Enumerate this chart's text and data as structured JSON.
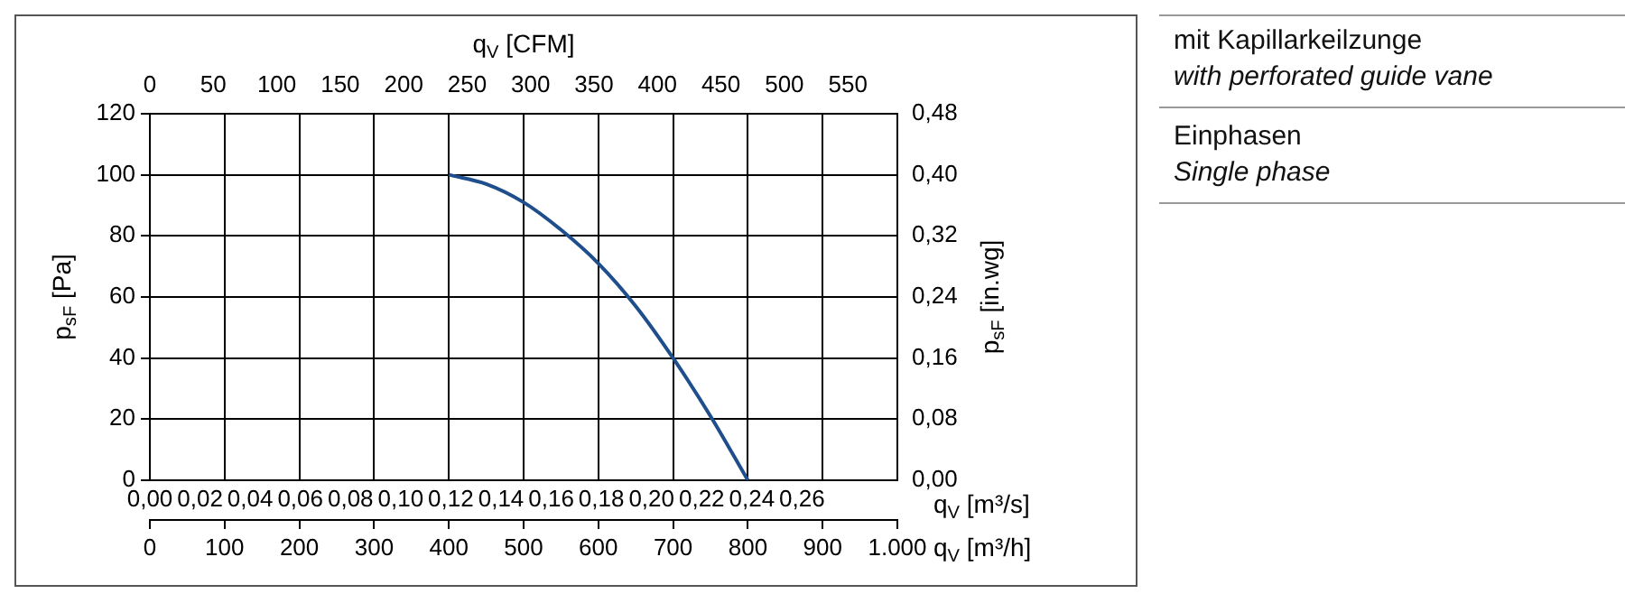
{
  "chart_data": {
    "type": "line",
    "xlabel": "q$_{V}$ [m³/h]",
    "x2label": "q$_{V}$ [CFM]",
    "ylabel": "p$_{sF}$ [Pa]",
    "y2label": "p$_{sF}$ [in.wg]",
    "x": [
      400,
      450,
      500,
      550,
      600,
      650,
      700,
      750,
      800
    ],
    "series": [
      {
        "color": "#1f4e8c",
        "values": [
          100,
          97,
          91,
          82,
          71,
          57,
          40,
          21,
          0
        ]
      }
    ],
    "xlim": [
      0,
      1000
    ],
    "xticks": [
      0,
      100,
      200,
      300,
      400,
      500,
      600,
      700,
      800,
      900,
      {
        "value": 1000,
        "label": "1.000"
      }
    ],
    "x2lim": [
      0,
      589
    ],
    "x2ticks": [
      0,
      50,
      100,
      150,
      200,
      250,
      300,
      350,
      400,
      450,
      500,
      550
    ],
    "ylim": [
      0,
      120
    ],
    "yticks": [
      0,
      20,
      40,
      60,
      80,
      100,
      120
    ],
    "y2lim": [
      0,
      0.48
    ],
    "y2ticks": [
      {
        "value": 0,
        "label": "0,00"
      },
      {
        "value": 0.08,
        "label": "0,08"
      },
      {
        "value": 0.16,
        "label": "0,16"
      },
      {
        "value": 0.24,
        "label": "0,24"
      },
      {
        "value": 0.32,
        "label": "0,32"
      },
      {
        "value": 0.4,
        "label": "0,40"
      },
      {
        "value": 0.48,
        "label": "0,48"
      }
    ],
    "grid": true,
    "legend": false,
    "marker": "none",
    "line_style": "solid",
    "annotations": [
      "mit Kapillarkeilzunge",
      "with perforated guide vane",
      "Einphasen",
      "Single phase",
      "q$_{V}$ [m³/s]",
      "0,00",
      "0,02",
      "0,04",
      "0,06",
      "0,08",
      "0,10",
      "0,12",
      "0,14",
      "0,16",
      "0,18",
      "0,20",
      "0,22",
      "0,24",
      "0,26"
    ]
  }
}
